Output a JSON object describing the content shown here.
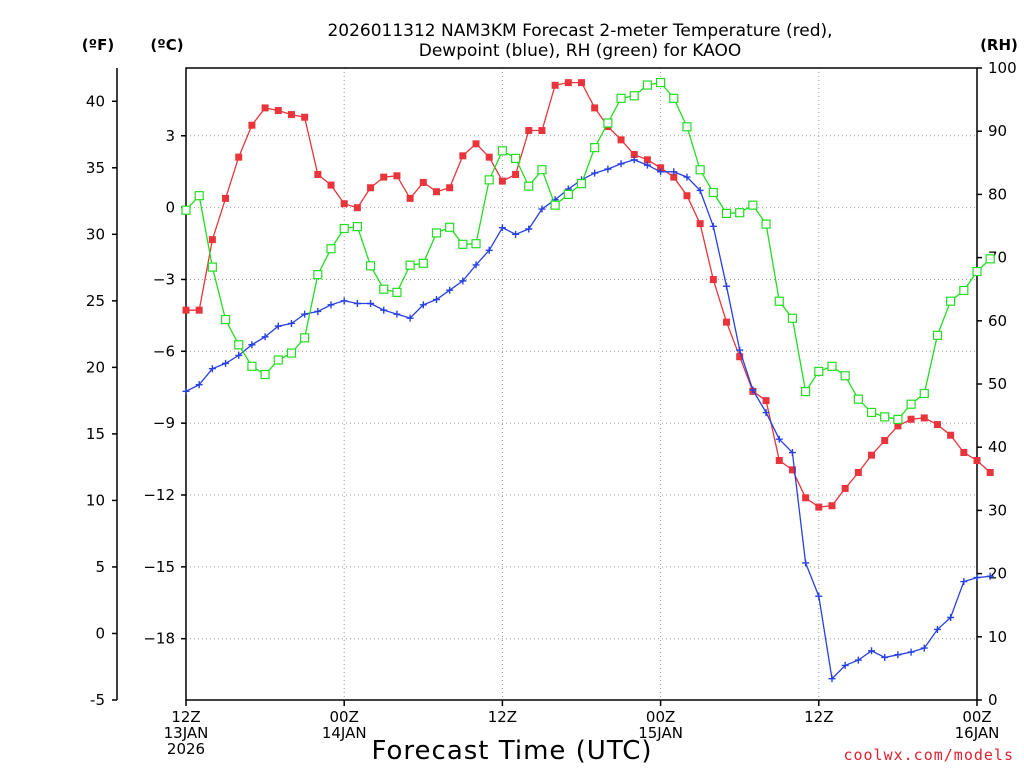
{
  "chart_data": {
    "type": "line",
    "title": [
      "2026011312 NAM3KM Forecast 2-meter Temperature (red),",
      "Dewpoint (blue), RH (green) for KAOO"
    ],
    "xlabel": "Forecast Time (UTC)",
    "credit": "coolwx.com/models",
    "units": {
      "f": "(ºF)",
      "c": "(ºC)",
      "rh": "(RH)"
    },
    "x_ticks": [
      {
        "hour": 0,
        "lines": [
          "12Z",
          "13JAN",
          "2026"
        ]
      },
      {
        "hour": 12,
        "lines": [
          "00Z",
          "14JAN"
        ]
      },
      {
        "hour": 24,
        "lines": [
          "12Z"
        ]
      },
      {
        "hour": 36,
        "lines": [
          "00Z",
          "15JAN"
        ]
      },
      {
        "hour": 48,
        "lines": [
          "12Z"
        ]
      },
      {
        "hour": 60,
        "lines": [
          "00Z",
          "16JAN"
        ]
      }
    ],
    "xlim": [
      0,
      60
    ],
    "f_axis": {
      "range": [
        -5,
        42.5
      ],
      "ticks": [
        -5,
        0,
        5,
        10,
        15,
        20,
        25,
        30,
        35,
        40
      ],
      "tick_labels": [
        "-5",
        "0",
        "5",
        "10",
        "15",
        "20",
        "25",
        "30",
        "35",
        "40"
      ]
    },
    "c_axis": {
      "range": [
        -20.56,
        5.83
      ],
      "ticks": [
        3,
        0,
        -3,
        -6,
        -9,
        -12,
        -15,
        -18
      ],
      "tick_labels": [
        "3",
        "0",
        "−3",
        "−6",
        "−9",
        "−12",
        "−15",
        "−18"
      ]
    },
    "rh_axis": {
      "range": [
        0,
        100
      ],
      "ticks": [
        0,
        10,
        20,
        30,
        40,
        50,
        60,
        70,
        80,
        90,
        100
      ],
      "tick_labels": [
        "0",
        "10",
        "20",
        "30",
        "40",
        "50",
        "60",
        "70",
        "80",
        "90",
        "100"
      ]
    },
    "series": [
      {
        "name": "2-meter Temperature",
        "axis": "f",
        "color": "#e8343a",
        "marker": "filled-square",
        "values": [
          24.3,
          24.3,
          29.6,
          32.7,
          35.8,
          38.2,
          39.5,
          39.3,
          39.0,
          38.8,
          34.5,
          33.7,
          32.3,
          32.0,
          33.5,
          34.3,
          34.4,
          32.7,
          33.9,
          33.2,
          33.5,
          35.9,
          36.8,
          35.8,
          34.0,
          34.5,
          37.8,
          37.8,
          41.2,
          41.4,
          41.4,
          39.5,
          38.1,
          37.1,
          36.0,
          35.6,
          35.0,
          34.3,
          32.9,
          30.8,
          26.6,
          23.4,
          20.8,
          18.2,
          17.5,
          13.0,
          12.3,
          10.2,
          9.5,
          9.6,
          10.9,
          12.1,
          13.4,
          14.5,
          15.6,
          16.1,
          16.2,
          15.7,
          14.9,
          13.6,
          13.0,
          12.1
        ]
      },
      {
        "name": "Dewpoint",
        "axis": "f",
        "color": "#2740e0",
        "marker": "plus",
        "values": [
          18.2,
          18.7,
          19.9,
          20.3,
          20.9,
          21.7,
          22.3,
          23.1,
          23.3,
          24.0,
          24.2,
          24.7,
          25.0,
          24.8,
          24.8,
          24.3,
          24.0,
          23.7,
          24.7,
          25.1,
          25.8,
          26.5,
          27.7,
          28.8,
          30.5,
          30.0,
          30.4,
          31.9,
          32.6,
          33.4,
          34.1,
          34.6,
          34.9,
          35.3,
          35.6,
          35.2,
          34.7,
          34.7,
          34.3,
          33.3,
          30.6,
          26.1,
          21.3,
          18.3,
          16.6,
          14.6,
          13.6,
          5.3,
          2.8,
          -3.4,
          -2.4,
          -2.0,
          -1.3,
          -1.8,
          -1.6,
          -1.4,
          -1.1,
          0.3,
          1.2,
          3.9,
          4.2,
          4.3
        ]
      },
      {
        "name": "RH",
        "axis": "rh",
        "color": "#22dd22",
        "marker": "open-square",
        "values": [
          77.5,
          79.8,
          68.5,
          60.2,
          56.2,
          52.8,
          51.5,
          53.8,
          54.9,
          57.3,
          67.3,
          71.4,
          74.6,
          74.9,
          68.7,
          65.0,
          64.5,
          68.8,
          69.1,
          73.9,
          74.8,
          72.1,
          72.2,
          82.3,
          86.9,
          85.7,
          81.3,
          83.9,
          78.3,
          80.0,
          81.7,
          87.4,
          91.3,
          95.2,
          95.6,
          97.3,
          97.7,
          95.2,
          90.7,
          83.9,
          80.3,
          77.0,
          77.1,
          78.3,
          75.3,
          63.1,
          60.4,
          48.8,
          52.0,
          52.8,
          51.3,
          47.6,
          45.5,
          44.8,
          44.4,
          46.8,
          48.5,
          57.7,
          63.1,
          64.8,
          67.8,
          69.8
        ]
      }
    ]
  }
}
